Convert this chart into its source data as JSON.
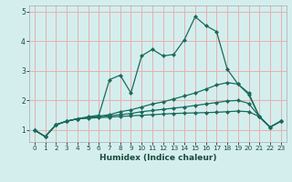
{
  "title": "",
  "xlabel": "Humidex (Indice chaleur)",
  "bg_color": "#d4eeee",
  "grid_color": "#e8b0b0",
  "line_color": "#1a6b5a",
  "xlim": [
    -0.5,
    23.5
  ],
  "ylim": [
    0.6,
    5.2
  ],
  "xticks": [
    0,
    1,
    2,
    3,
    4,
    5,
    6,
    7,
    8,
    9,
    10,
    11,
    12,
    13,
    14,
    15,
    16,
    17,
    18,
    19,
    20,
    21,
    22,
    23
  ],
  "yticks": [
    1,
    2,
    3,
    4,
    5
  ],
  "line1_y": [
    1.0,
    0.78,
    1.18,
    1.3,
    1.38,
    1.45,
    1.5,
    2.7,
    2.85,
    2.25,
    3.5,
    3.72,
    3.5,
    3.55,
    4.05,
    4.82,
    4.52,
    4.32,
    3.05,
    2.55,
    2.2,
    1.45,
    1.1,
    1.3
  ],
  "line2_y": [
    1.0,
    0.78,
    1.18,
    1.3,
    1.38,
    1.42,
    1.47,
    1.52,
    1.62,
    1.68,
    1.78,
    1.88,
    1.95,
    2.05,
    2.15,
    2.25,
    2.38,
    2.52,
    2.6,
    2.55,
    2.25,
    1.45,
    1.1,
    1.3
  ],
  "line3_y": [
    1.0,
    0.78,
    1.18,
    1.3,
    1.38,
    1.42,
    1.45,
    1.48,
    1.52,
    1.56,
    1.62,
    1.66,
    1.7,
    1.74,
    1.78,
    1.83,
    1.88,
    1.93,
    1.98,
    2.0,
    1.9,
    1.45,
    1.1,
    1.3
  ],
  "line4_y": [
    1.0,
    0.78,
    1.18,
    1.3,
    1.38,
    1.4,
    1.42,
    1.44,
    1.46,
    1.48,
    1.5,
    1.52,
    1.54,
    1.56,
    1.57,
    1.58,
    1.59,
    1.6,
    1.62,
    1.64,
    1.62,
    1.45,
    1.1,
    1.3
  ]
}
